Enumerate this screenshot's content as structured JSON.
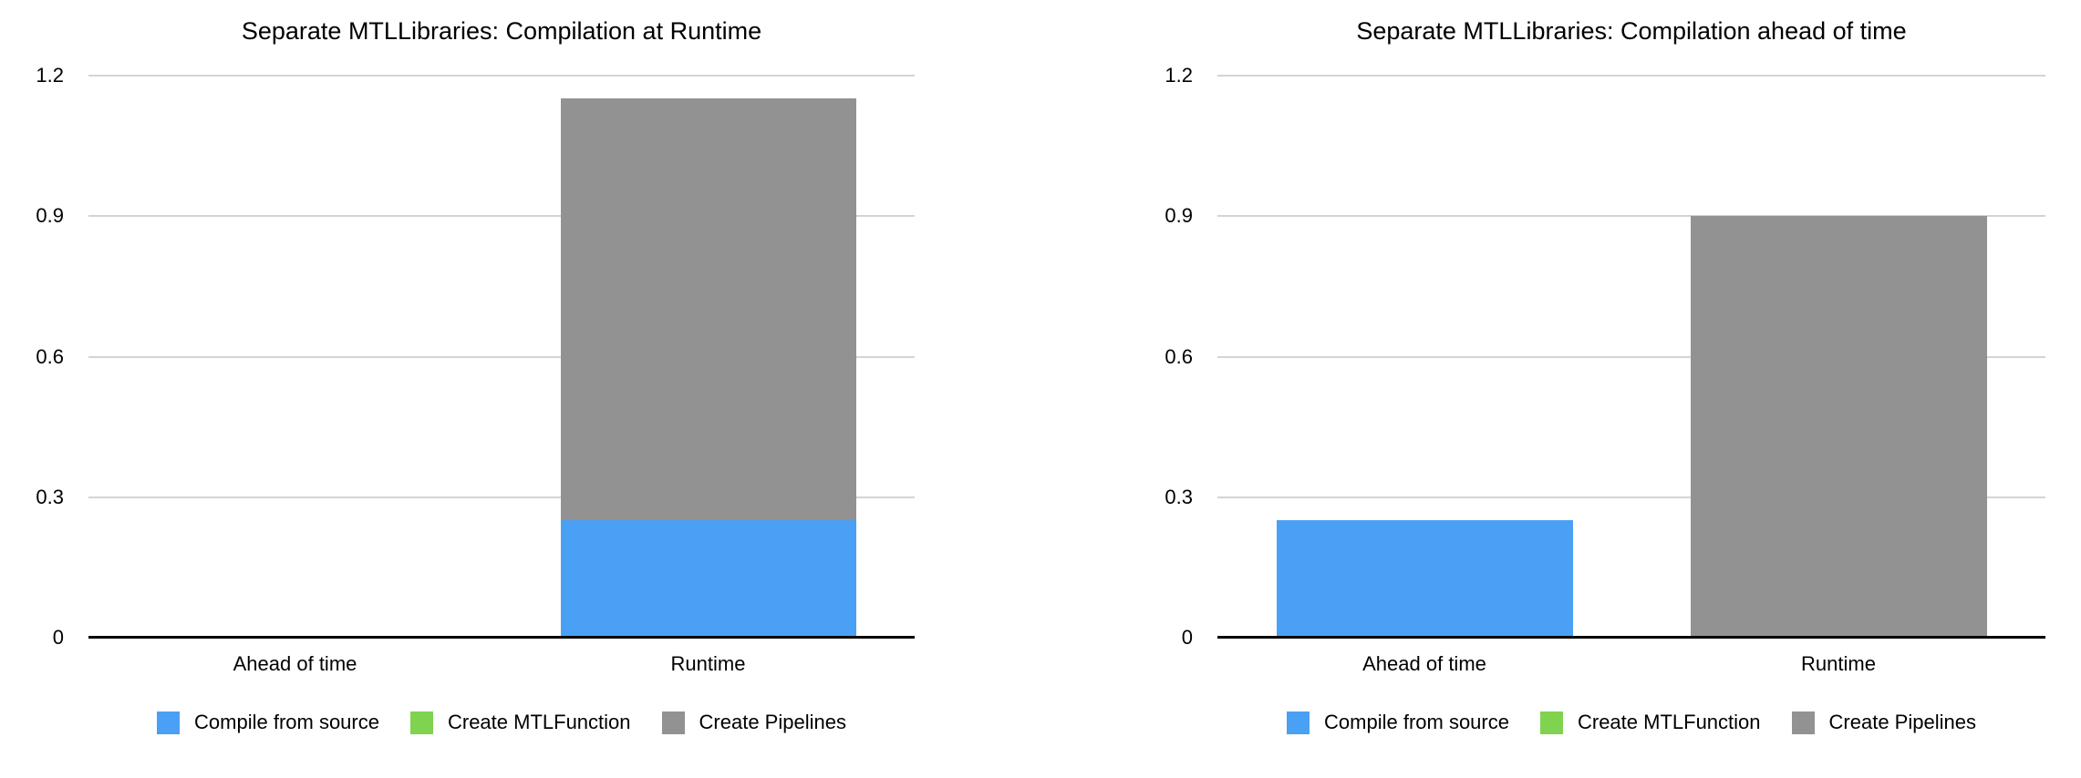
{
  "background_color": "#ffffff",
  "text_color": "#000000",
  "gridline_color": "#d4d4d4",
  "axis_color": "#000000",
  "chart_data": [
    {
      "type": "bar",
      "stacked": true,
      "title": "Separate MTLLibraries: Compilation at Runtime",
      "categories": [
        "Ahead of time",
        "Runtime"
      ],
      "series": [
        {
          "name": "Compile from source",
          "color": "#4AA0F5",
          "values": [
            0,
            0.25
          ]
        },
        {
          "name": "Create MTLFunction",
          "color": "#7FD34F",
          "values": [
            0,
            0
          ]
        },
        {
          "name": "Create Pipelines",
          "color": "#929292",
          "values": [
            0,
            0.9
          ]
        }
      ],
      "xlabel": "",
      "ylabel": "",
      "ylim": [
        0,
        1.2
      ],
      "yticks": [
        "0",
        "0.3",
        "0.6",
        "0.9",
        "1.2"
      ],
      "grid": true,
      "legend_position": "bottom"
    },
    {
      "type": "bar",
      "stacked": true,
      "title": "Separate MTLLibraries: Compilation ahead of time",
      "categories": [
        "Ahead of time",
        "Runtime"
      ],
      "series": [
        {
          "name": "Compile from source",
          "color": "#4AA0F5",
          "values": [
            0.25,
            0
          ]
        },
        {
          "name": "Create MTLFunction",
          "color": "#7FD34F",
          "values": [
            0,
            0
          ]
        },
        {
          "name": "Create Pipelines",
          "color": "#929292",
          "values": [
            0,
            0.9
          ]
        }
      ],
      "xlabel": "",
      "ylabel": "",
      "ylim": [
        0,
        1.2
      ],
      "yticks": [
        "0",
        "0.3",
        "0.6",
        "0.9",
        "1.2"
      ],
      "grid": true,
      "legend_position": "bottom"
    }
  ]
}
